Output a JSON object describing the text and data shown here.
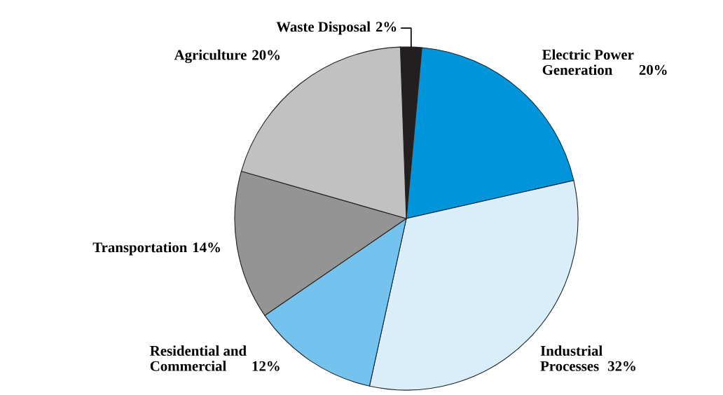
{
  "chart_data": {
    "type": "pie",
    "categories": [
      "Waste Disposal",
      "Electric Power\nGeneration",
      "Industrial\nProcesses",
      "Residential and\nCommercial",
      "Transportation",
      "Agriculture"
    ],
    "values": [
      2,
      20,
      32,
      12,
      14,
      20
    ],
    "value_labels": [
      "2%",
      "20%",
      "32%",
      "12%",
      "14%",
      "20%"
    ],
    "colors": [
      "#231f20",
      "#0095da",
      "#d9eef9",
      "#73c3ee",
      "#959494",
      "#c1c1c1"
    ]
  }
}
